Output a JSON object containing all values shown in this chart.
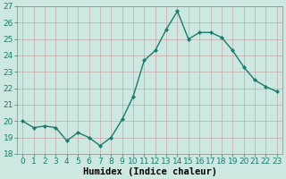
{
  "x": [
    0,
    1,
    2,
    3,
    4,
    5,
    6,
    7,
    8,
    9,
    10,
    11,
    12,
    13,
    14,
    15,
    16,
    17,
    18,
    19,
    20,
    21,
    22,
    23
  ],
  "y": [
    20.0,
    19.6,
    19.7,
    19.6,
    18.8,
    19.3,
    19.0,
    18.5,
    19.0,
    20.1,
    21.5,
    23.7,
    24.3,
    25.6,
    26.7,
    25.0,
    25.4,
    25.4,
    25.1,
    24.3,
    23.3,
    22.5,
    22.1,
    21.8
  ],
  "line_color": "#1a7a6e",
  "marker": "D",
  "marker_size": 2.2,
  "bg_color": "#cce8e0",
  "grid_major_color": "#c0d8d0",
  "grid_minor_color": "#d4ebe4",
  "xlabel": "Humidex (Indice chaleur)",
  "ylim": [
    18,
    27
  ],
  "xlim": [
    -0.5,
    23.5
  ],
  "yticks": [
    18,
    19,
    20,
    21,
    22,
    23,
    24,
    25,
    26,
    27
  ],
  "xticks": [
    0,
    1,
    2,
    3,
    4,
    5,
    6,
    7,
    8,
    9,
    10,
    11,
    12,
    13,
    14,
    15,
    16,
    17,
    18,
    19,
    20,
    21,
    22,
    23
  ],
  "tick_fontsize": 6.5,
  "xlabel_fontsize": 7.5,
  "linewidth": 1.0
}
